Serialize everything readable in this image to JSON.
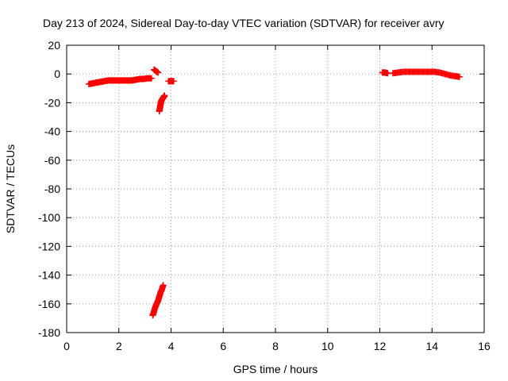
{
  "chart_data": {
    "type": "scatter",
    "title": "Day 213 of 2024, Sidereal Day-to-day VTEC variation (SDTVAR) for receiver avry",
    "xlabel": "GPS time / hours",
    "ylabel": "SDTVAR / TECUs",
    "xlim": [
      0,
      16
    ],
    "ylim": [
      -180,
      20
    ],
    "x_ticks": [
      0,
      2,
      4,
      6,
      8,
      10,
      12,
      14,
      16
    ],
    "y_ticks": [
      20,
      0,
      -20,
      -40,
      -60,
      -80,
      -100,
      -120,
      -140,
      -160,
      -180
    ],
    "grid": true,
    "marker": "+",
    "color": "#ff0000",
    "series": [
      {
        "segments": [
          [
            [
              0.85,
              -7
            ],
            [
              1.0,
              -6.5
            ],
            [
              1.15,
              -6
            ],
            [
              1.3,
              -5.5
            ],
            [
              1.45,
              -5
            ],
            [
              1.6,
              -4.5
            ],
            [
              1.75,
              -4.5
            ],
            [
              1.9,
              -4.5
            ],
            [
              2.05,
              -4.5
            ],
            [
              2.2,
              -4.5
            ],
            [
              2.35,
              -4.5
            ],
            [
              2.5,
              -4.5
            ],
            [
              2.65,
              -4
            ],
            [
              2.8,
              -3.5
            ],
            [
              2.95,
              -3.5
            ],
            [
              3.1,
              -3
            ],
            [
              3.25,
              -3
            ]
          ],
          [
            [
              3.35,
              3
            ],
            [
              3.42,
              2
            ],
            [
              3.5,
              1
            ]
          ],
          [
            [
              3.55,
              -26
            ],
            [
              3.58,
              -23
            ],
            [
              3.6,
              -21
            ],
            [
              3.62,
              -19
            ],
            [
              3.65,
              -18
            ],
            [
              3.68,
              -17
            ],
            [
              3.72,
              -16
            ],
            [
              3.75,
              -15
            ]
          ],
          [
            [
              3.9,
              -5
            ],
            [
              4.0,
              -5
            ],
            [
              4.1,
              -5
            ]
          ],
          [
            [
              3.3,
              -168
            ],
            [
              3.35,
              -165
            ],
            [
              3.4,
              -162
            ],
            [
              3.45,
              -160
            ],
            [
              3.5,
              -158
            ],
            [
              3.55,
              -155
            ],
            [
              3.6,
              -152
            ],
            [
              3.65,
              -150
            ],
            [
              3.7,
              -147
            ]
          ],
          [
            [
              12.1,
              1
            ],
            [
              12.2,
              1
            ],
            [
              12.3,
              0.5
            ]
          ],
          [
            [
              12.5,
              0.5
            ],
            [
              12.7,
              1
            ],
            [
              12.9,
              1.5
            ],
            [
              13.1,
              1.5
            ],
            [
              13.3,
              1.5
            ],
            [
              13.5,
              1.5
            ],
            [
              13.7,
              1.5
            ],
            [
              13.9,
              1.5
            ],
            [
              14.1,
              1.5
            ],
            [
              14.3,
              1
            ],
            [
              14.5,
              0
            ],
            [
              14.7,
              -1
            ],
            [
              14.9,
              -1.5
            ],
            [
              15.05,
              -2
            ]
          ]
        ]
      }
    ]
  }
}
